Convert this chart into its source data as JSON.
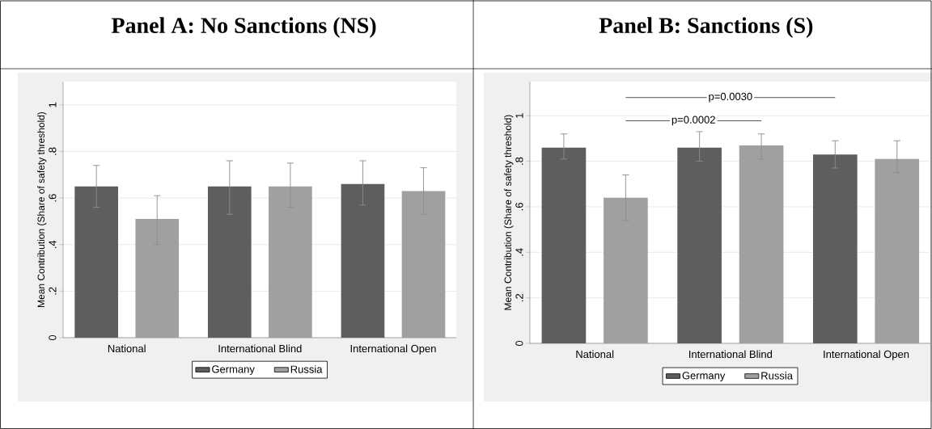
{
  "chart_data": [
    {
      "type": "bar",
      "title": "Panel A: No Sanctions (NS)",
      "ylabel": "Mean Contribution (Share of safety threshold)",
      "categories": [
        "National",
        "International Blind",
        "International Open"
      ],
      "series": [
        {
          "name": "Germany",
          "color": "#5e5e5e",
          "values": [
            0.65,
            0.65,
            0.66
          ],
          "errors": [
            [
              0.56,
              0.74
            ],
            [
              0.53,
              0.76
            ],
            [
              0.57,
              0.76
            ]
          ]
        },
        {
          "name": "Russia",
          "color": "#a0a0a0",
          "values": [
            0.51,
            0.65,
            0.63
          ],
          "errors": [
            [
              0.4,
              0.61
            ],
            [
              0.56,
              0.75
            ],
            [
              0.53,
              0.73
            ]
          ]
        }
      ],
      "ylim": [
        0,
        1.1
      ],
      "yticks": [
        0,
        {
          "value": 0.2,
          "label": ".2"
        },
        {
          "value": 0.4,
          "label": ".4"
        },
        {
          "value": 0.6,
          "label": ".6"
        },
        {
          "value": 0.8,
          "label": ".8"
        },
        1
      ],
      "grid": "y",
      "legend": "bottom"
    },
    {
      "type": "bar",
      "title": "Panel B: Sanctions (S)",
      "ylabel": "Mean Contribution (Share of safety threshold)",
      "categories": [
        "National",
        "International Blind",
        "International Open"
      ],
      "series": [
        {
          "name": "Germany",
          "color": "#5e5e5e",
          "values": [
            0.86,
            0.86,
            0.83
          ],
          "errors": [
            [
              0.81,
              0.92
            ],
            [
              0.8,
              0.93
            ],
            [
              0.77,
              0.89
            ]
          ]
        },
        {
          "name": "Russia",
          "color": "#a0a0a0",
          "values": [
            0.64,
            0.87,
            0.81
          ],
          "errors": [
            [
              0.54,
              0.74
            ],
            [
              0.81,
              0.92
            ],
            [
              0.75,
              0.89
            ]
          ]
        }
      ],
      "ylim": [
        0,
        1.15
      ],
      "yticks": [
        0,
        {
          "value": 0.2,
          "label": ".2"
        },
        {
          "value": 0.4,
          "label": ".4"
        },
        {
          "value": 0.6,
          "label": ".6"
        },
        {
          "value": 0.8,
          "label": ".8"
        },
        1
      ],
      "annotations": [
        "p=0.0002",
        "p=0.0030"
      ],
      "grid": "y",
      "legend": "bottom"
    }
  ]
}
